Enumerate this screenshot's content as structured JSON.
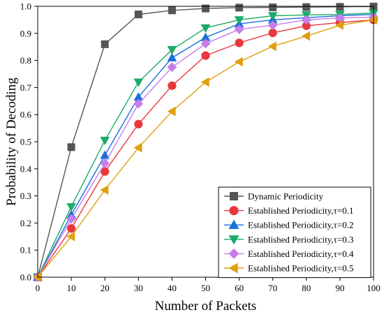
{
  "chart_data": {
    "type": "line",
    "xlabel": "Number of Packets",
    "ylabel": "Probability of Decoding",
    "xlim": [
      0,
      100
    ],
    "ylim": [
      0.0,
      1.0
    ],
    "x": [
      0,
      10,
      20,
      30,
      40,
      50,
      60,
      70,
      80,
      90,
      100
    ],
    "x_ticks": [
      "0",
      "10",
      "20",
      "30",
      "40",
      "50",
      "60",
      "70",
      "80",
      "90",
      "100"
    ],
    "y_ticks": [
      "0.0",
      "0.1",
      "0.2",
      "0.3",
      "0.4",
      "0.5",
      "0.6",
      "0.7",
      "0.8",
      "0.9",
      "1.0"
    ],
    "grid": false,
    "legend_position": "bottom-right",
    "series": [
      {
        "name": "Dynamic Periodicity",
        "color": "#555555",
        "marker": "square",
        "values": [
          0.0,
          0.48,
          0.86,
          0.97,
          0.985,
          0.992,
          0.995,
          0.996,
          0.997,
          0.998,
          0.999
        ]
      },
      {
        "name": "Established Periodicity,τ=0.1",
        "color": "#e8383d",
        "marker": "circle",
        "values": [
          0.0,
          0.18,
          0.39,
          0.565,
          0.707,
          0.818,
          0.865,
          0.902,
          0.928,
          0.94,
          0.95
        ]
      },
      {
        "name": "Established Periodicity,τ=0.2",
        "color": "#1a6fd6",
        "marker": "triangle-up",
        "values": [
          0.0,
          0.23,
          0.45,
          0.665,
          0.81,
          0.885,
          0.935,
          0.95,
          0.958,
          0.965,
          0.97
        ]
      },
      {
        "name": "Established Periodicity,τ=0.3",
        "color": "#1aab68",
        "marker": "triangle-down",
        "values": [
          0.0,
          0.26,
          0.505,
          0.72,
          0.84,
          0.92,
          0.95,
          0.965,
          0.968,
          0.97,
          0.975
        ]
      },
      {
        "name": "Established Periodicity,τ=0.4",
        "color": "#c77dea",
        "marker": "diamond",
        "values": [
          0.0,
          0.215,
          0.42,
          0.64,
          0.775,
          0.862,
          0.915,
          0.93,
          0.95,
          0.957,
          0.96
        ]
      },
      {
        "name": "Established Periodicity,τ=0.5",
        "color": "#e0a010",
        "marker": "triangle-left",
        "values": [
          0.0,
          0.15,
          0.322,
          0.478,
          0.612,
          0.72,
          0.795,
          0.852,
          0.89,
          0.93,
          0.95
        ]
      }
    ]
  }
}
